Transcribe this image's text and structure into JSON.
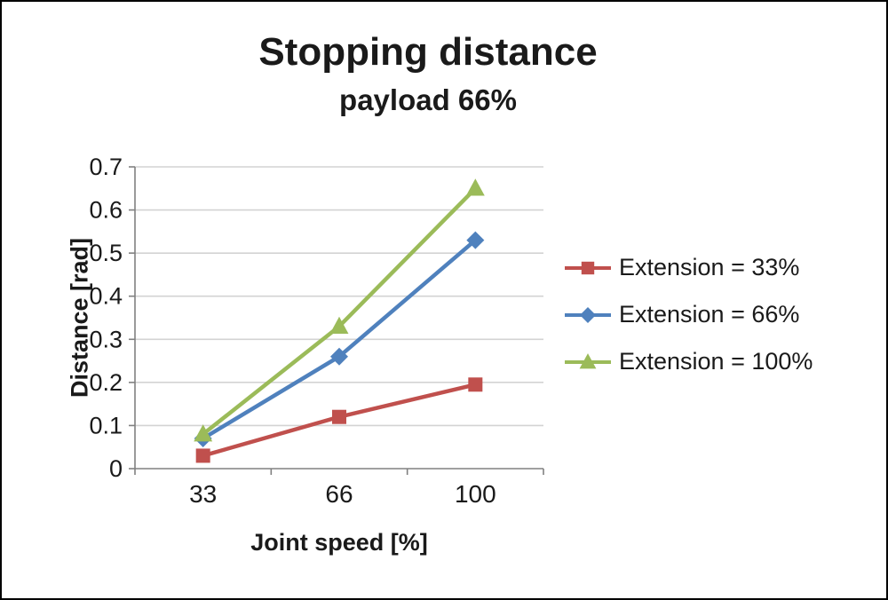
{
  "chart_data": {
    "type": "line",
    "title": "Stopping distance",
    "subtitle": "payload 66%",
    "xlabel": "Joint speed [%]",
    "ylabel": "Distance [rad]",
    "categories": [
      "33",
      "66",
      "100"
    ],
    "ylim": [
      0,
      0.7
    ],
    "ytick_step": 0.1,
    "grid": true,
    "legend_position": "right",
    "series": [
      {
        "name": "Extension = 33%",
        "marker": "square-marker-icon",
        "color": "#C0504D",
        "values": [
          0.03,
          0.12,
          0.195
        ]
      },
      {
        "name": "Extension = 66%",
        "marker": "diamond-marker-icon",
        "color": "#4F81BD",
        "values": [
          0.07,
          0.26,
          0.53
        ]
      },
      {
        "name": "Extension = 100%",
        "marker": "triangle-marker-icon",
        "color": "#9BBB59",
        "values": [
          0.08,
          0.33,
          0.65
        ]
      }
    ],
    "colors": {
      "gridline": "#D3D3D3",
      "axis": "#808080",
      "text": "#1a1a1a",
      "background": "#FFFFFF"
    }
  }
}
